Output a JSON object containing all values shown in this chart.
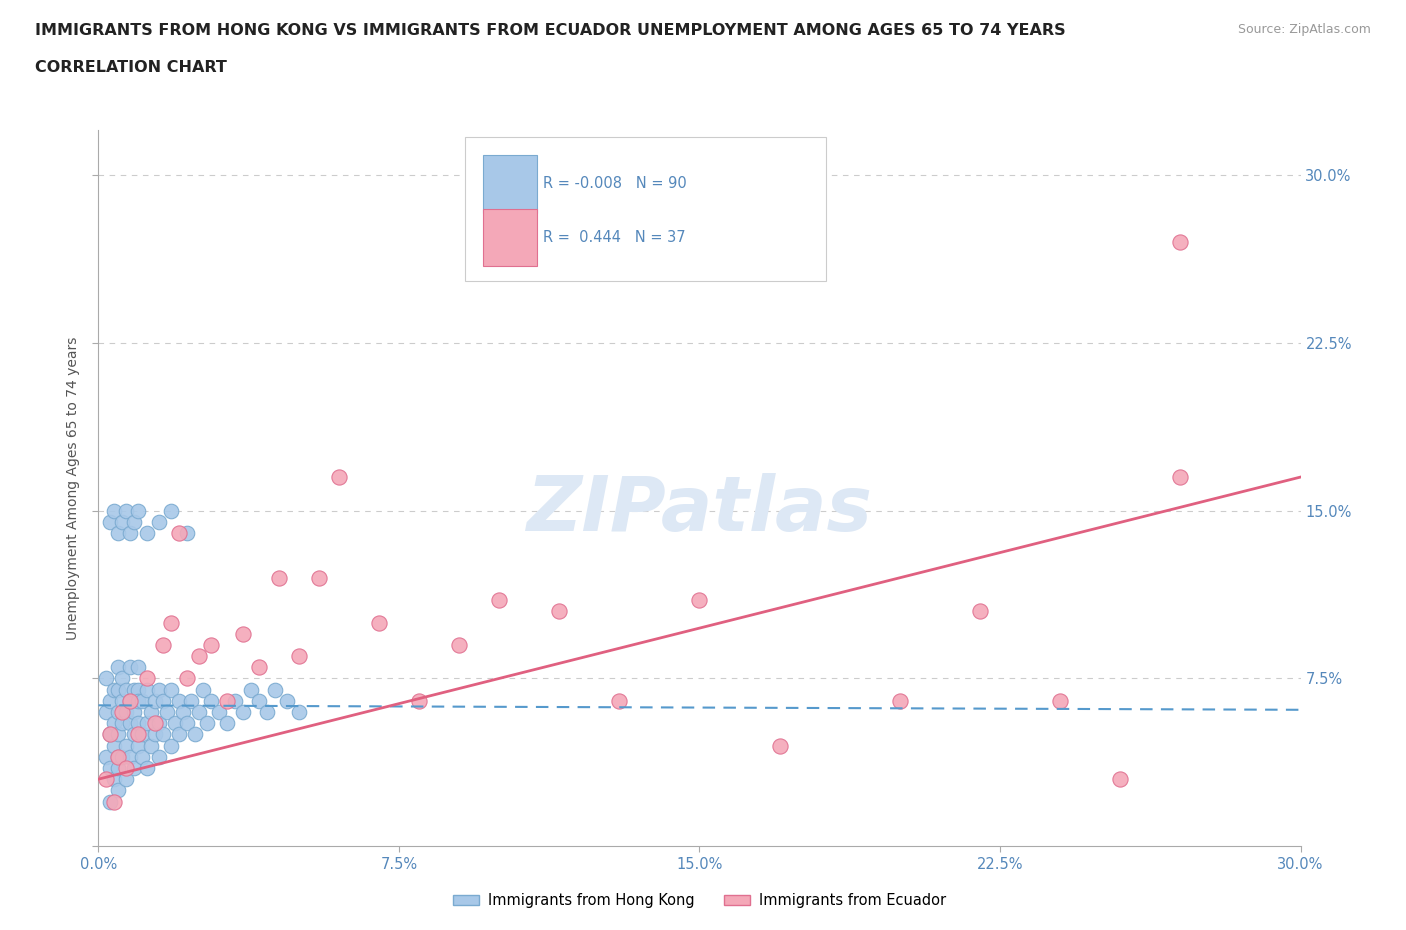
{
  "title_line1": "IMMIGRANTS FROM HONG KONG VS IMMIGRANTS FROM ECUADOR UNEMPLOYMENT AMONG AGES 65 TO 74 YEARS",
  "title_line2": "CORRELATION CHART",
  "source_text": "Source: ZipAtlas.com",
  "ylabel": "Unemployment Among Ages 65 to 74 years",
  "xmin": 0.0,
  "xmax": 0.3,
  "ymin": 0.0,
  "ymax": 0.32,
  "hk_color": "#a8c8e8",
  "ec_color": "#f4a8b8",
  "hk_edge_color": "#7aaad0",
  "ec_edge_color": "#e07090",
  "hk_line_color": "#5599cc",
  "ec_line_color": "#e06080",
  "axis_label_color": "#5588bb",
  "grid_color": "#cccccc",
  "watermark_color": "#dde8f5",
  "legend_label_hk": "Immigrants from Hong Kong",
  "legend_label_ec": "Immigrants from Ecuador",
  "background_color": "#ffffff",
  "hk_x": [
    0.002,
    0.002,
    0.002,
    0.003,
    0.003,
    0.003,
    0.003,
    0.004,
    0.004,
    0.004,
    0.004,
    0.005,
    0.005,
    0.005,
    0.005,
    0.005,
    0.005,
    0.005,
    0.006,
    0.006,
    0.006,
    0.006,
    0.007,
    0.007,
    0.007,
    0.007,
    0.008,
    0.008,
    0.008,
    0.008,
    0.009,
    0.009,
    0.009,
    0.009,
    0.01,
    0.01,
    0.01,
    0.01,
    0.01,
    0.011,
    0.011,
    0.011,
    0.012,
    0.012,
    0.012,
    0.013,
    0.013,
    0.014,
    0.014,
    0.015,
    0.015,
    0.015,
    0.016,
    0.016,
    0.017,
    0.018,
    0.018,
    0.019,
    0.02,
    0.02,
    0.021,
    0.022,
    0.023,
    0.024,
    0.025,
    0.026,
    0.027,
    0.028,
    0.03,
    0.032,
    0.034,
    0.036,
    0.038,
    0.04,
    0.042,
    0.044,
    0.047,
    0.05,
    0.003,
    0.004,
    0.005,
    0.006,
    0.007,
    0.008,
    0.009,
    0.01,
    0.012,
    0.015,
    0.018,
    0.022
  ],
  "hk_y": [
    0.06,
    0.04,
    0.075,
    0.05,
    0.065,
    0.035,
    0.02,
    0.055,
    0.07,
    0.03,
    0.045,
    0.06,
    0.08,
    0.04,
    0.025,
    0.07,
    0.05,
    0.035,
    0.065,
    0.055,
    0.04,
    0.075,
    0.06,
    0.045,
    0.03,
    0.07,
    0.055,
    0.065,
    0.04,
    0.08,
    0.05,
    0.07,
    0.035,
    0.06,
    0.055,
    0.07,
    0.045,
    0.065,
    0.08,
    0.05,
    0.065,
    0.04,
    0.055,
    0.07,
    0.035,
    0.06,
    0.045,
    0.065,
    0.05,
    0.07,
    0.055,
    0.04,
    0.065,
    0.05,
    0.06,
    0.07,
    0.045,
    0.055,
    0.065,
    0.05,
    0.06,
    0.055,
    0.065,
    0.05,
    0.06,
    0.07,
    0.055,
    0.065,
    0.06,
    0.055,
    0.065,
    0.06,
    0.07,
    0.065,
    0.06,
    0.07,
    0.065,
    0.06,
    0.145,
    0.15,
    0.14,
    0.145,
    0.15,
    0.14,
    0.145,
    0.15,
    0.14,
    0.145,
    0.15,
    0.14
  ],
  "ec_x": [
    0.002,
    0.003,
    0.004,
    0.005,
    0.006,
    0.007,
    0.008,
    0.01,
    0.012,
    0.014,
    0.016,
    0.018,
    0.02,
    0.022,
    0.025,
    0.028,
    0.032,
    0.036,
    0.04,
    0.045,
    0.05,
    0.055,
    0.06,
    0.07,
    0.08,
    0.09,
    0.1,
    0.115,
    0.13,
    0.15,
    0.17,
    0.2,
    0.22,
    0.24,
    0.255,
    0.27,
    0.27
  ],
  "ec_y": [
    0.03,
    0.05,
    0.02,
    0.04,
    0.06,
    0.035,
    0.065,
    0.05,
    0.075,
    0.055,
    0.09,
    0.1,
    0.14,
    0.075,
    0.085,
    0.09,
    0.065,
    0.095,
    0.08,
    0.12,
    0.085,
    0.12,
    0.165,
    0.1,
    0.065,
    0.09,
    0.11,
    0.105,
    0.065,
    0.11,
    0.045,
    0.065,
    0.105,
    0.065,
    0.03,
    0.27,
    0.165
  ],
  "hk_trend_x": [
    0.0,
    0.3
  ],
  "hk_trend_y": [
    0.063,
    0.061
  ],
  "ec_trend_x": [
    0.0,
    0.3
  ],
  "ec_trend_y": [
    0.03,
    0.165
  ]
}
